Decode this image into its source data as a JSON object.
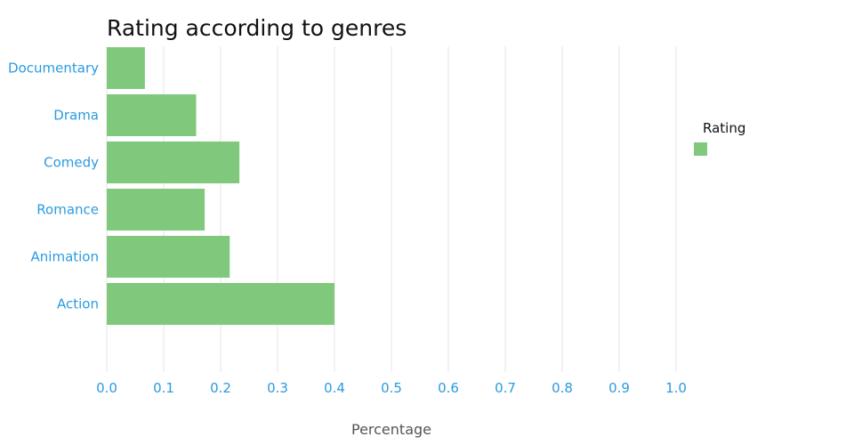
{
  "chart_data": {
    "type": "bar",
    "orientation": "horizontal",
    "title": "Rating according to genres",
    "xlabel": "Percentage",
    "ylabel": "",
    "categories": [
      "Documentary",
      "Drama",
      "Comedy",
      "Romance",
      "Animation",
      "Action"
    ],
    "series": [
      {
        "name": "Rating",
        "values": [
          0.067,
          0.157,
          0.233,
          0.172,
          0.216,
          0.4
        ]
      }
    ],
    "xlim": [
      0,
      1.0
    ],
    "xticks": [
      "0.0",
      "0.1",
      "0.2",
      "0.3",
      "0.4",
      "0.5",
      "0.6",
      "0.7",
      "0.8",
      "0.9",
      "1.0"
    ],
    "grid": "vertical",
    "legend": "right",
    "colors": {
      "bar": "#80c97c",
      "labels": "#2a9be0"
    }
  }
}
